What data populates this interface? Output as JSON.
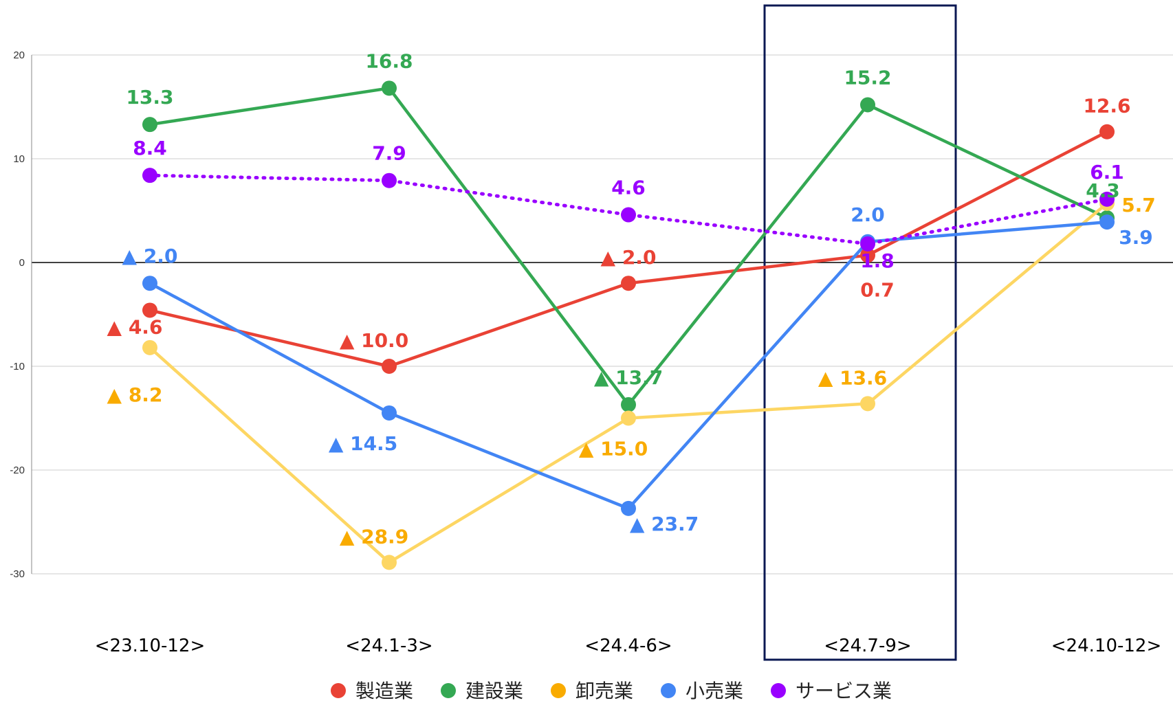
{
  "chart_data": {
    "type": "line",
    "categories": [
      "<23.10-12>",
      "<24.1-3>",
      "<24.4-6>",
      "<24.7-9>",
      "<24.10-12>"
    ],
    "ylim": [
      -30,
      20
    ],
    "yticks": [
      "20",
      "10",
      "0",
      "-10",
      "-20",
      "-30"
    ],
    "grid": true,
    "legend_position": "bottom",
    "highlighted_category": "<24.7-9>",
    "series": [
      {
        "name": "製造業",
        "color": "#e94235",
        "style": "solid",
        "values": [
          -4.6,
          -10.0,
          -2.0,
          0.7,
          12.6
        ],
        "labels": [
          "▲ 4.6",
          "▲ 10.0",
          "▲ 2.0",
          "0.7",
          "12.6"
        ]
      },
      {
        "name": "建設業",
        "color": "#34a853",
        "style": "solid",
        "values": [
          13.3,
          16.8,
          -13.7,
          15.2,
          4.3
        ],
        "labels": [
          "13.3",
          "16.8",
          "▲ 13.7",
          "15.2",
          "4.3"
        ]
      },
      {
        "name": "卸売業",
        "color": "#fdd663",
        "label_color": "#f9ab00",
        "style": "solid",
        "values": [
          -8.2,
          -28.9,
          -15.0,
          -13.6,
          5.7
        ],
        "labels": [
          "▲ 8.2",
          "▲ 28.9",
          "▲ 15.0",
          "▲ 13.6",
          "5.7"
        ]
      },
      {
        "name": "小売業",
        "color": "#4285f4",
        "style": "solid",
        "values": [
          -2.0,
          -14.5,
          -23.7,
          2.0,
          3.9
        ],
        "labels": [
          "▲ 2.0",
          "▲ 14.5",
          "▲ 23.7",
          "2.0",
          "3.9"
        ]
      },
      {
        "name": "サービス業",
        "color": "#9900ff",
        "style": "dotted",
        "values": [
          8.4,
          7.9,
          4.6,
          1.8,
          6.1
        ],
        "labels": [
          "8.4",
          "7.9",
          "4.6",
          "1.8",
          "6.1"
        ]
      }
    ]
  }
}
